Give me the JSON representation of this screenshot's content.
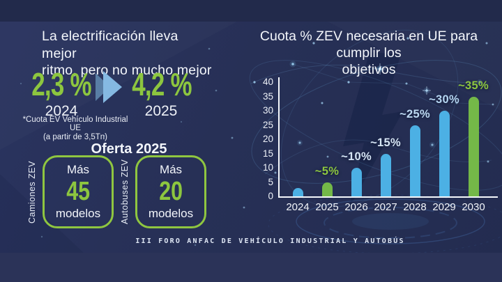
{
  "palette": {
    "background_navy": "#273056",
    "accent_green": "#8dc63f",
    "bar_blue": "#4cb0e4",
    "bar_green": "#74b848",
    "axis_white": "#f5f8fc"
  },
  "left": {
    "title_lines": [
      "La electrificación lleva mejor",
      "ritmo, pero no mucho mejor"
    ],
    "stats": [
      {
        "value": "2,3 %",
        "year": "2024"
      },
      {
        "value": "4,2 %",
        "year": "2025"
      }
    ],
    "footnote_lines": [
      "*Cuota EV Vehículo Industrial UE",
      "(a partir de 3,5Tn)"
    ],
    "offer": {
      "title": "Oferta 2025",
      "cards": [
        {
          "side_label": "Camiones ZEV",
          "top": "Más",
          "number": "45",
          "bottom": "modelos"
        },
        {
          "side_label": "Autobuses ZEV",
          "top": "Más",
          "number": "20",
          "bottom": "modelos"
        }
      ]
    }
  },
  "chart_data": {
    "type": "bar",
    "title": "Cuota % ZEV necesaria en UE para cumplir los objetivos",
    "title_lines": [
      "Cuota % ZEV necesaria en UE para cumplir los",
      "objetivos"
    ],
    "categories": [
      "2024",
      "2025",
      "2026",
      "2027",
      "2028",
      "2029",
      "2030"
    ],
    "values": [
      3,
      5,
      10,
      15,
      25,
      30,
      35
    ],
    "bar_labels": [
      "",
      "~5%",
      "~10%",
      "~15%",
      "~25%",
      "~30%",
      "~35%"
    ],
    "bar_colors": [
      "#4cb0e4",
      "#74b848",
      "#4cb0e4",
      "#4cb0e4",
      "#4cb0e4",
      "#4cb0e4",
      "#74b848"
    ],
    "label_colors": [
      "",
      "#8dc63f",
      "#d6e5f5",
      "#d6e5f5",
      "#bdd9f2",
      "#b5d5f1",
      "#8dc63f"
    ],
    "xlabel": "",
    "ylabel": "",
    "ylim": [
      0,
      40
    ],
    "yticks": [
      0,
      5,
      10,
      15,
      20,
      25,
      30,
      35,
      40
    ],
    "grid": false,
    "legend": false
  },
  "footer": {
    "text": "III FORO ANFAC DE VEHÍCULO INDUSTRIAL Y AUTOBÚS"
  }
}
